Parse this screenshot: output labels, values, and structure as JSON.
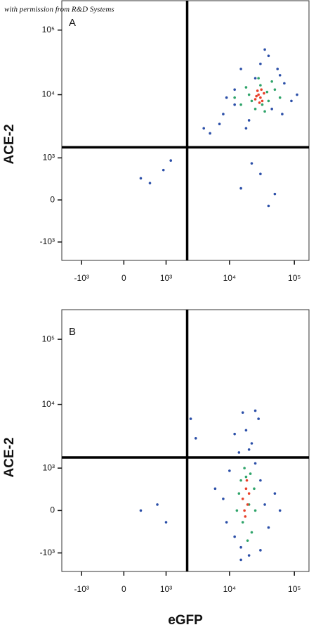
{
  "watermark": "with permission from R&D Systems",
  "chart_data": [
    {
      "type": "scatter",
      "panel": "A",
      "y_label": "ACE-2",
      "scale": "biexponential",
      "xlim": [
        -2100,
        168000
      ],
      "ylim": [
        -2000,
        285000
      ],
      "xticks": [
        {
          "value": -1000,
          "label": "-10³"
        },
        0,
        {
          "value": 1000,
          "label": "10³"
        },
        {
          "value": 10000,
          "label": "10⁴"
        },
        {
          "value": 100000,
          "label": "10⁵"
        }
      ],
      "yticks": [
        {
          "value": -1000,
          "label": "-10³"
        },
        0,
        {
          "value": 1000,
          "label": "10³"
        },
        {
          "value": 10000,
          "label": "10⁴"
        },
        {
          "value": 100000,
          "label": "10⁵"
        }
      ],
      "gates": {
        "x": 2200,
        "y": 1500
      },
      "series": [
        {
          "color": "#2b4fa8",
          "x": [
            8000,
            12000,
            60000,
            90000,
            15000,
            7000,
            40000,
            70000,
            5000,
            20000,
            110000,
            30000,
            45000,
            12000,
            25000,
            18000,
            35000,
            55000,
            500,
            300,
            1200,
            900,
            15000,
            30000,
            40000,
            22000,
            50000,
            9000,
            65000,
            4000
          ],
          "y": [
            5000,
            12000,
            20000,
            8000,
            25000,
            3500,
            40000,
            15000,
            2500,
            4000,
            10000,
            30000,
            6000,
            7000,
            18000,
            3000,
            50000,
            25000,
            300,
            400,
            900,
            600,
            200,
            500,
            -100,
            800,
            100,
            9000,
            5000,
            3000
          ]
        },
        {
          "color": "#2fa46a",
          "x": [
            15000,
            20000,
            25000,
            30000,
            40000,
            50000,
            18000,
            35000,
            45000,
            22000,
            28000,
            38000,
            60000,
            12000,
            32000
          ],
          "y": [
            7000,
            10000,
            6000,
            14000,
            8000,
            12000,
            13000,
            5500,
            16000,
            8000,
            18000,
            11000,
            9000,
            9000,
            7000
          ]
        },
        {
          "color": "#e8402a",
          "x": [
            25000,
            28000,
            30000,
            32000,
            27000,
            34000,
            29000,
            26000,
            31000
          ],
          "y": [
            8500,
            10000,
            9000,
            8000,
            11500,
            10500,
            7500,
            9500,
            12000
          ]
        }
      ]
    },
    {
      "type": "scatter",
      "panel": "B",
      "y_label": "ACE-2",
      "x_label": "eGFP",
      "scale": "biexponential",
      "xlim": [
        -2100,
        168000
      ],
      "ylim": [
        -2000,
        285000
      ],
      "xticks": [
        {
          "value": -1000,
          "label": "-10³"
        },
        0,
        {
          "value": 1000,
          "label": "10³"
        },
        {
          "value": 10000,
          "label": "10⁴"
        },
        {
          "value": 100000,
          "label": "10⁵"
        }
      ],
      "yticks": [
        {
          "value": -1000,
          "label": "-10³"
        },
        0,
        {
          "value": 1000,
          "label": "10³"
        },
        {
          "value": 10000,
          "label": "10⁴"
        },
        {
          "value": 100000,
          "label": "10⁵"
        }
      ],
      "gates": {
        "x": 2200,
        "y": 1500
      },
      "series": [
        {
          "color": "#2b4fa8",
          "x": [
            8000,
            12000,
            30000,
            40000,
            10000,
            25000,
            15000,
            20000,
            35000,
            6000,
            50000,
            14000,
            22000,
            18000,
            9000,
            28000,
            16000,
            300,
            700,
            1000,
            2500,
            3000,
            12000,
            25000,
            20000,
            15000,
            30000,
            60000
          ],
          "y": [
            200,
            -500,
            600,
            -300,
            900,
            1200,
            -800,
            -1100,
            100,
            400,
            300,
            1800,
            2500,
            4000,
            -200,
            6000,
            7500,
            0,
            100,
            -200,
            6000,
            3000,
            3500,
            8000,
            2000,
            -1300,
            -900,
            0
          ]
        },
        {
          "color": "#2fa46a",
          "x": [
            14000,
            16000,
            18000,
            20000,
            22000,
            24000,
            13000,
            17000,
            21000,
            19000,
            25000,
            15000
          ],
          "y": [
            300,
            -200,
            700,
            100,
            -400,
            400,
            0,
            1000,
            800,
            -600,
            0,
            600
          ]
        },
        {
          "color": "#e8402a",
          "x": [
            16000,
            18000,
            19000,
            17000,
            20000,
            18500,
            17500
          ],
          "y": [
            200,
            400,
            100,
            0,
            300,
            600,
            -100
          ]
        }
      ]
    }
  ]
}
